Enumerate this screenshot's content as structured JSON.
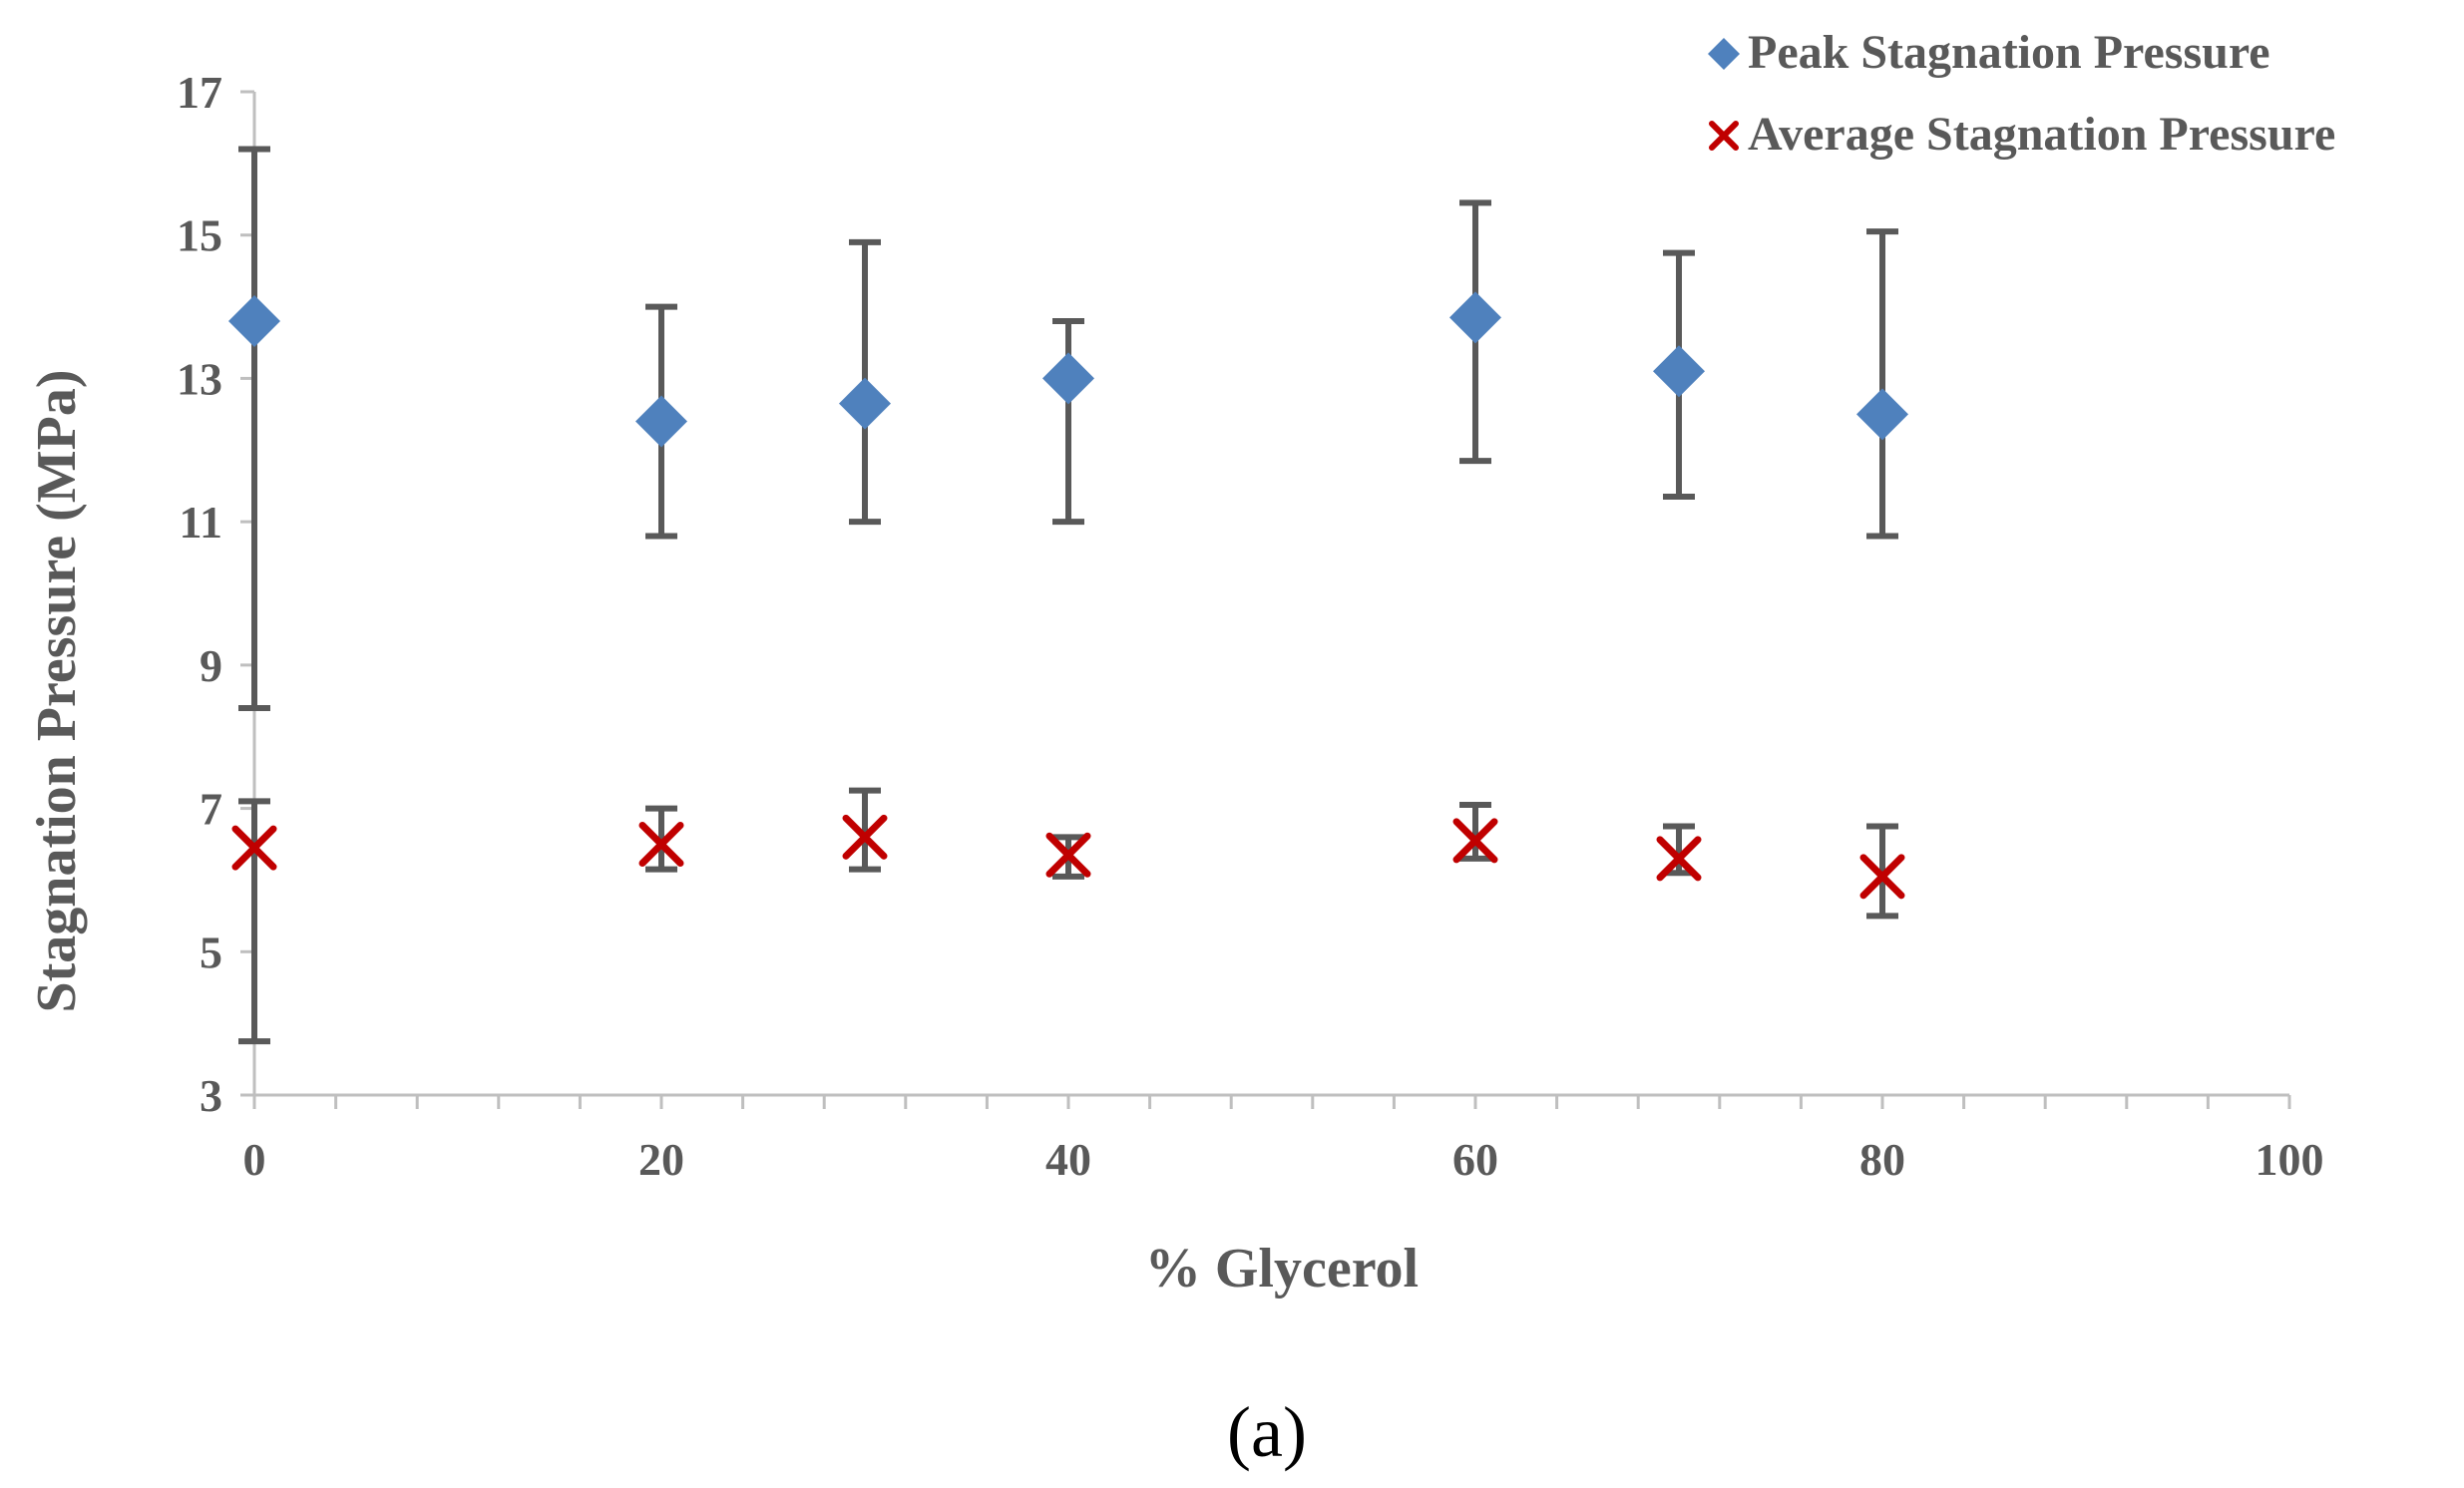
{
  "chart_data": {
    "type": "scatter",
    "panel_label": "(a)",
    "xlabel": "% Glycerol",
    "ylabel": "Stagnation Pressure (MPa)",
    "xlim": [
      0,
      100
    ],
    "ylim": [
      3,
      17
    ],
    "x_ticks": [
      0,
      20,
      40,
      60,
      80,
      100
    ],
    "x_minor_step": 4,
    "y_ticks": [
      3,
      5,
      7,
      9,
      11,
      13,
      15,
      17
    ],
    "legend_position": "top-right",
    "series": [
      {
        "name": "Peak Stagnation Pressure",
        "marker": "diamond",
        "color": "#4F81BD",
        "points": [
          {
            "x": 0,
            "y": 13.8,
            "err_low": 8.4,
            "err_high": 16.2
          },
          {
            "x": 20,
            "y": 12.4,
            "err_low": 10.8,
            "err_high": 14.0
          },
          {
            "x": 30,
            "y": 12.65,
            "err_low": 11.0,
            "err_high": 14.9
          },
          {
            "x": 40,
            "y": 13.0,
            "err_low": 11.0,
            "err_high": 13.8
          },
          {
            "x": 60,
            "y": 13.85,
            "err_low": 11.85,
            "err_high": 15.45
          },
          {
            "x": 70,
            "y": 13.1,
            "err_low": 11.35,
            "err_high": 14.75
          },
          {
            "x": 80,
            "y": 12.5,
            "err_low": 10.8,
            "err_high": 15.05
          }
        ]
      },
      {
        "name": "Average Stagnation Pressure",
        "marker": "x",
        "color": "#C00000",
        "points": [
          {
            "x": 0,
            "y": 6.45,
            "err_low": 3.75,
            "err_high": 7.1
          },
          {
            "x": 20,
            "y": 6.5,
            "err_low": 6.15,
            "err_high": 7.0
          },
          {
            "x": 30,
            "y": 6.6,
            "err_low": 6.15,
            "err_high": 7.25
          },
          {
            "x": 40,
            "y": 6.35,
            "err_low": 6.05,
            "err_high": 6.6
          },
          {
            "x": 60,
            "y": 6.55,
            "err_low": 6.3,
            "err_high": 7.05
          },
          {
            "x": 70,
            "y": 6.3,
            "err_low": 6.1,
            "err_high": 6.75
          },
          {
            "x": 80,
            "y": 6.05,
            "err_low": 5.5,
            "err_high": 6.75
          }
        ]
      }
    ]
  },
  "colors": {
    "axis": "#BFBFBF",
    "tick_text": "#595959",
    "error_bar": "#595959",
    "label_text": "#595959"
  }
}
